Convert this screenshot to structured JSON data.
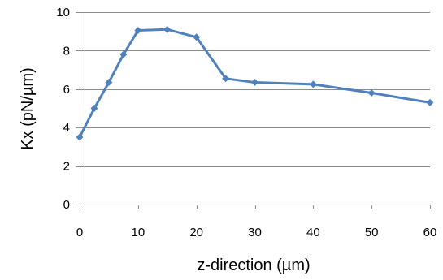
{
  "chart_data": {
    "type": "line",
    "title": "",
    "xlabel": "z-direction (µm)",
    "ylabel": "Kx (pN/µm)",
    "xlim": [
      0,
      60
    ],
    "ylim": [
      0,
      10
    ],
    "x_ticks": [
      0,
      10,
      20,
      30,
      40,
      50,
      60
    ],
    "y_ticks": [
      0,
      2,
      4,
      6,
      8,
      10
    ],
    "x_tick_labels": [
      "0",
      "10",
      "20",
      "30",
      "40",
      "50",
      "60"
    ],
    "y_tick_labels": [
      "0",
      "2",
      "4",
      "6",
      "8",
      "10"
    ],
    "grid": "horizontal",
    "legend": "none",
    "series": [
      {
        "marker": "diamond",
        "color": "#4f81bd",
        "x": [
          0,
          2.5,
          5,
          7.5,
          10,
          15,
          20,
          25,
          30,
          40,
          50,
          60
        ],
        "y": [
          3.5,
          5.0,
          6.35,
          7.8,
          9.05,
          9.1,
          8.7,
          6.55,
          6.35,
          6.25,
          5.8,
          5.3
        ]
      }
    ]
  }
}
